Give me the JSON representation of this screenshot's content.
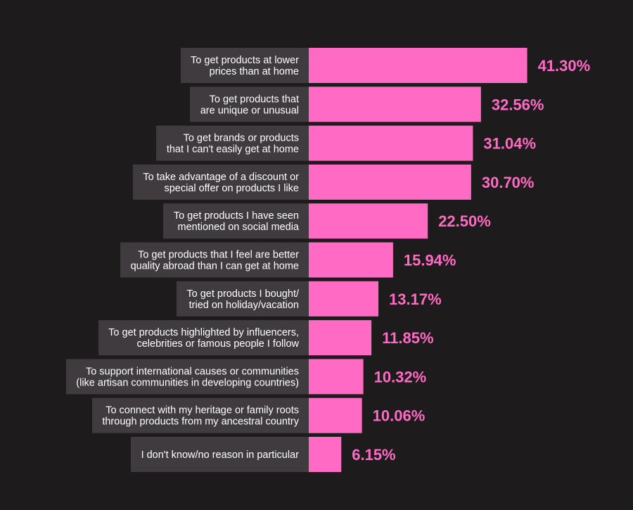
{
  "chart_data": {
    "type": "bar",
    "orientation": "horizontal",
    "categories": [
      [
        "To get products at lower",
        "prices than at home"
      ],
      [
        "To get products that",
        "are unique or unusual"
      ],
      [
        "To get brands or products",
        "that I can't easily get at home"
      ],
      [
        "To take advantage of a discount or",
        "special offer on products I like"
      ],
      [
        "To get products I have seen",
        "mentioned on social media"
      ],
      [
        "To get products that I feel are better",
        "quality abroad than I can get at home"
      ],
      [
        "To get products I bought/",
        "tried on holiday/vacation"
      ],
      [
        "To get products highlighted by influencers,",
        "celebrities or famous people I follow"
      ],
      [
        "To support international causes or communities",
        "(like artisan communities in developing countries)"
      ],
      [
        "To connect with my heritage or family roots",
        "through products from my ancestral country"
      ],
      [
        "I don't know/no reason in particular"
      ]
    ],
    "values": [
      41.3,
      32.56,
      31.04,
      30.7,
      22.5,
      15.94,
      13.17,
      11.85,
      10.32,
      10.06,
      6.15
    ],
    "value_labels": [
      "41.30%",
      "32.56%",
      "31.04%",
      "30.70%",
      "22.50%",
      "15.94%",
      "13.17%",
      "11.85%",
      "10.32%",
      "10.06%",
      "6.15%"
    ],
    "bar_color": "#ff6bc4",
    "label_box_color": "#3f3b3e",
    "background": "#1d1b1c",
    "grid": false,
    "legend": false
  }
}
